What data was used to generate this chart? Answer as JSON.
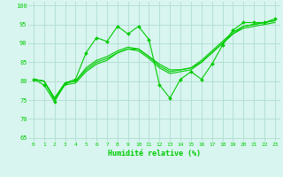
{
  "xlabel": "Humidité relative (%)",
  "x": [
    0,
    1,
    2,
    3,
    4,
    5,
    6,
    7,
    8,
    9,
    10,
    11,
    12,
    13,
    14,
    15,
    16,
    17,
    18,
    19,
    20,
    21,
    22,
    23
  ],
  "line1": [
    80.5,
    79.0,
    74.5,
    79.5,
    80.5,
    87.5,
    91.5,
    90.5,
    94.5,
    92.5,
    94.5,
    91.0,
    79.0,
    75.5,
    80.5,
    82.5,
    80.5,
    84.5,
    89.5,
    93.5,
    95.5,
    95.5,
    95.5,
    96.5
  ],
  "line2": [
    80.5,
    80.0,
    75.5,
    79.5,
    80.0,
    83.0,
    85.0,
    86.0,
    87.5,
    88.5,
    88.5,
    86.5,
    84.5,
    83.0,
    83.0,
    83.5,
    85.0,
    87.5,
    90.0,
    92.5,
    94.5,
    95.0,
    95.5,
    96.0
  ],
  "line3": [
    80.5,
    80.0,
    75.5,
    79.5,
    80.0,
    83.5,
    85.5,
    86.5,
    88.0,
    89.0,
    88.5,
    86.5,
    84.0,
    82.5,
    83.0,
    83.5,
    85.5,
    88.0,
    90.5,
    93.0,
    94.5,
    95.0,
    95.5,
    96.0
  ],
  "line4": [
    80.5,
    80.0,
    75.0,
    79.0,
    79.5,
    82.5,
    84.5,
    85.5,
    87.5,
    88.5,
    88.0,
    86.0,
    83.5,
    82.0,
    82.5,
    83.0,
    85.0,
    87.5,
    90.0,
    92.5,
    94.0,
    94.5,
    95.0,
    95.5
  ],
  "line_color": "#00cc00",
  "bg_color": "#d8f5f0",
  "grid_color": "#b0ddd0",
  "ylim": [
    64,
    101
  ],
  "yticks": [
    65,
    70,
    75,
    80,
    85,
    90,
    95,
    100
  ],
  "xticks": [
    0,
    1,
    2,
    3,
    4,
    5,
    6,
    7,
    8,
    9,
    10,
    11,
    12,
    13,
    14,
    15,
    16,
    17,
    18,
    19,
    20,
    21,
    22,
    23
  ]
}
